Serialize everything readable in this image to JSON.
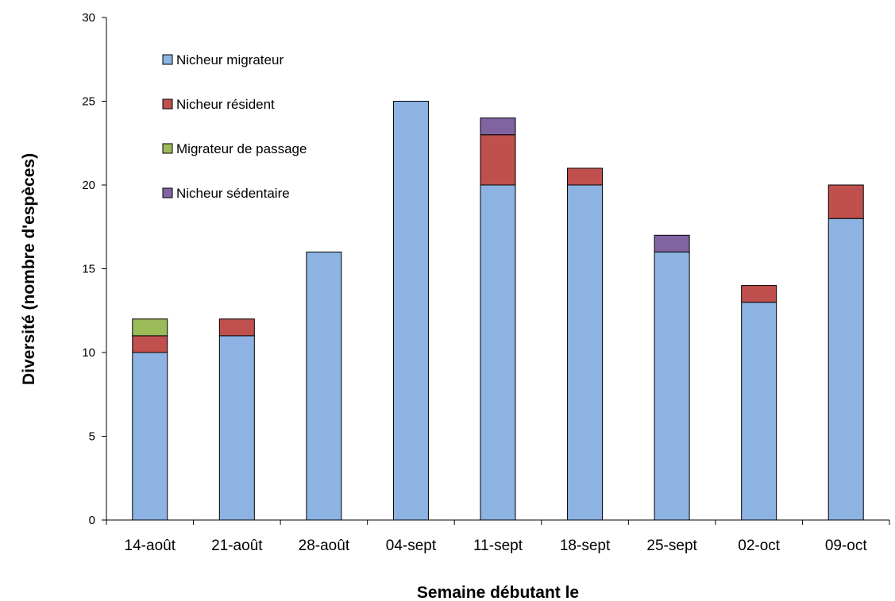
{
  "chart_data": {
    "type": "bar",
    "stacked": true,
    "title": "",
    "xlabel": "Semaine débutant le",
    "ylabel": "Diversité (nombre d'espèces)",
    "ylim": [
      0,
      30
    ],
    "yticks": [
      0,
      5,
      10,
      15,
      20,
      25,
      30
    ],
    "grid": false,
    "legend_position": "top-left",
    "categories": [
      "14-août",
      "21-août",
      "28-août",
      "04-sept",
      "11-sept",
      "18-sept",
      "25-sept",
      "02-oct",
      "09-oct"
    ],
    "series": [
      {
        "name": "Nicheur migrateur",
        "color": "#8DB3E2",
        "values": [
          10,
          11,
          16,
          25,
          20,
          20,
          16,
          13,
          18
        ]
      },
      {
        "name": "Nicheur résident",
        "color": "#C0504D",
        "values": [
          1,
          1,
          0,
          0,
          3,
          1,
          0,
          1,
          2
        ]
      },
      {
        "name": "Migrateur de passage",
        "color": "#9BBB59",
        "values": [
          1,
          0,
          0,
          0,
          0,
          0,
          0,
          0,
          0
        ]
      },
      {
        "name": "Nicheur sédentaire",
        "color": "#8064A2",
        "values": [
          0,
          0,
          0,
          0,
          1,
          0,
          1,
          0,
          0
        ]
      }
    ]
  }
}
